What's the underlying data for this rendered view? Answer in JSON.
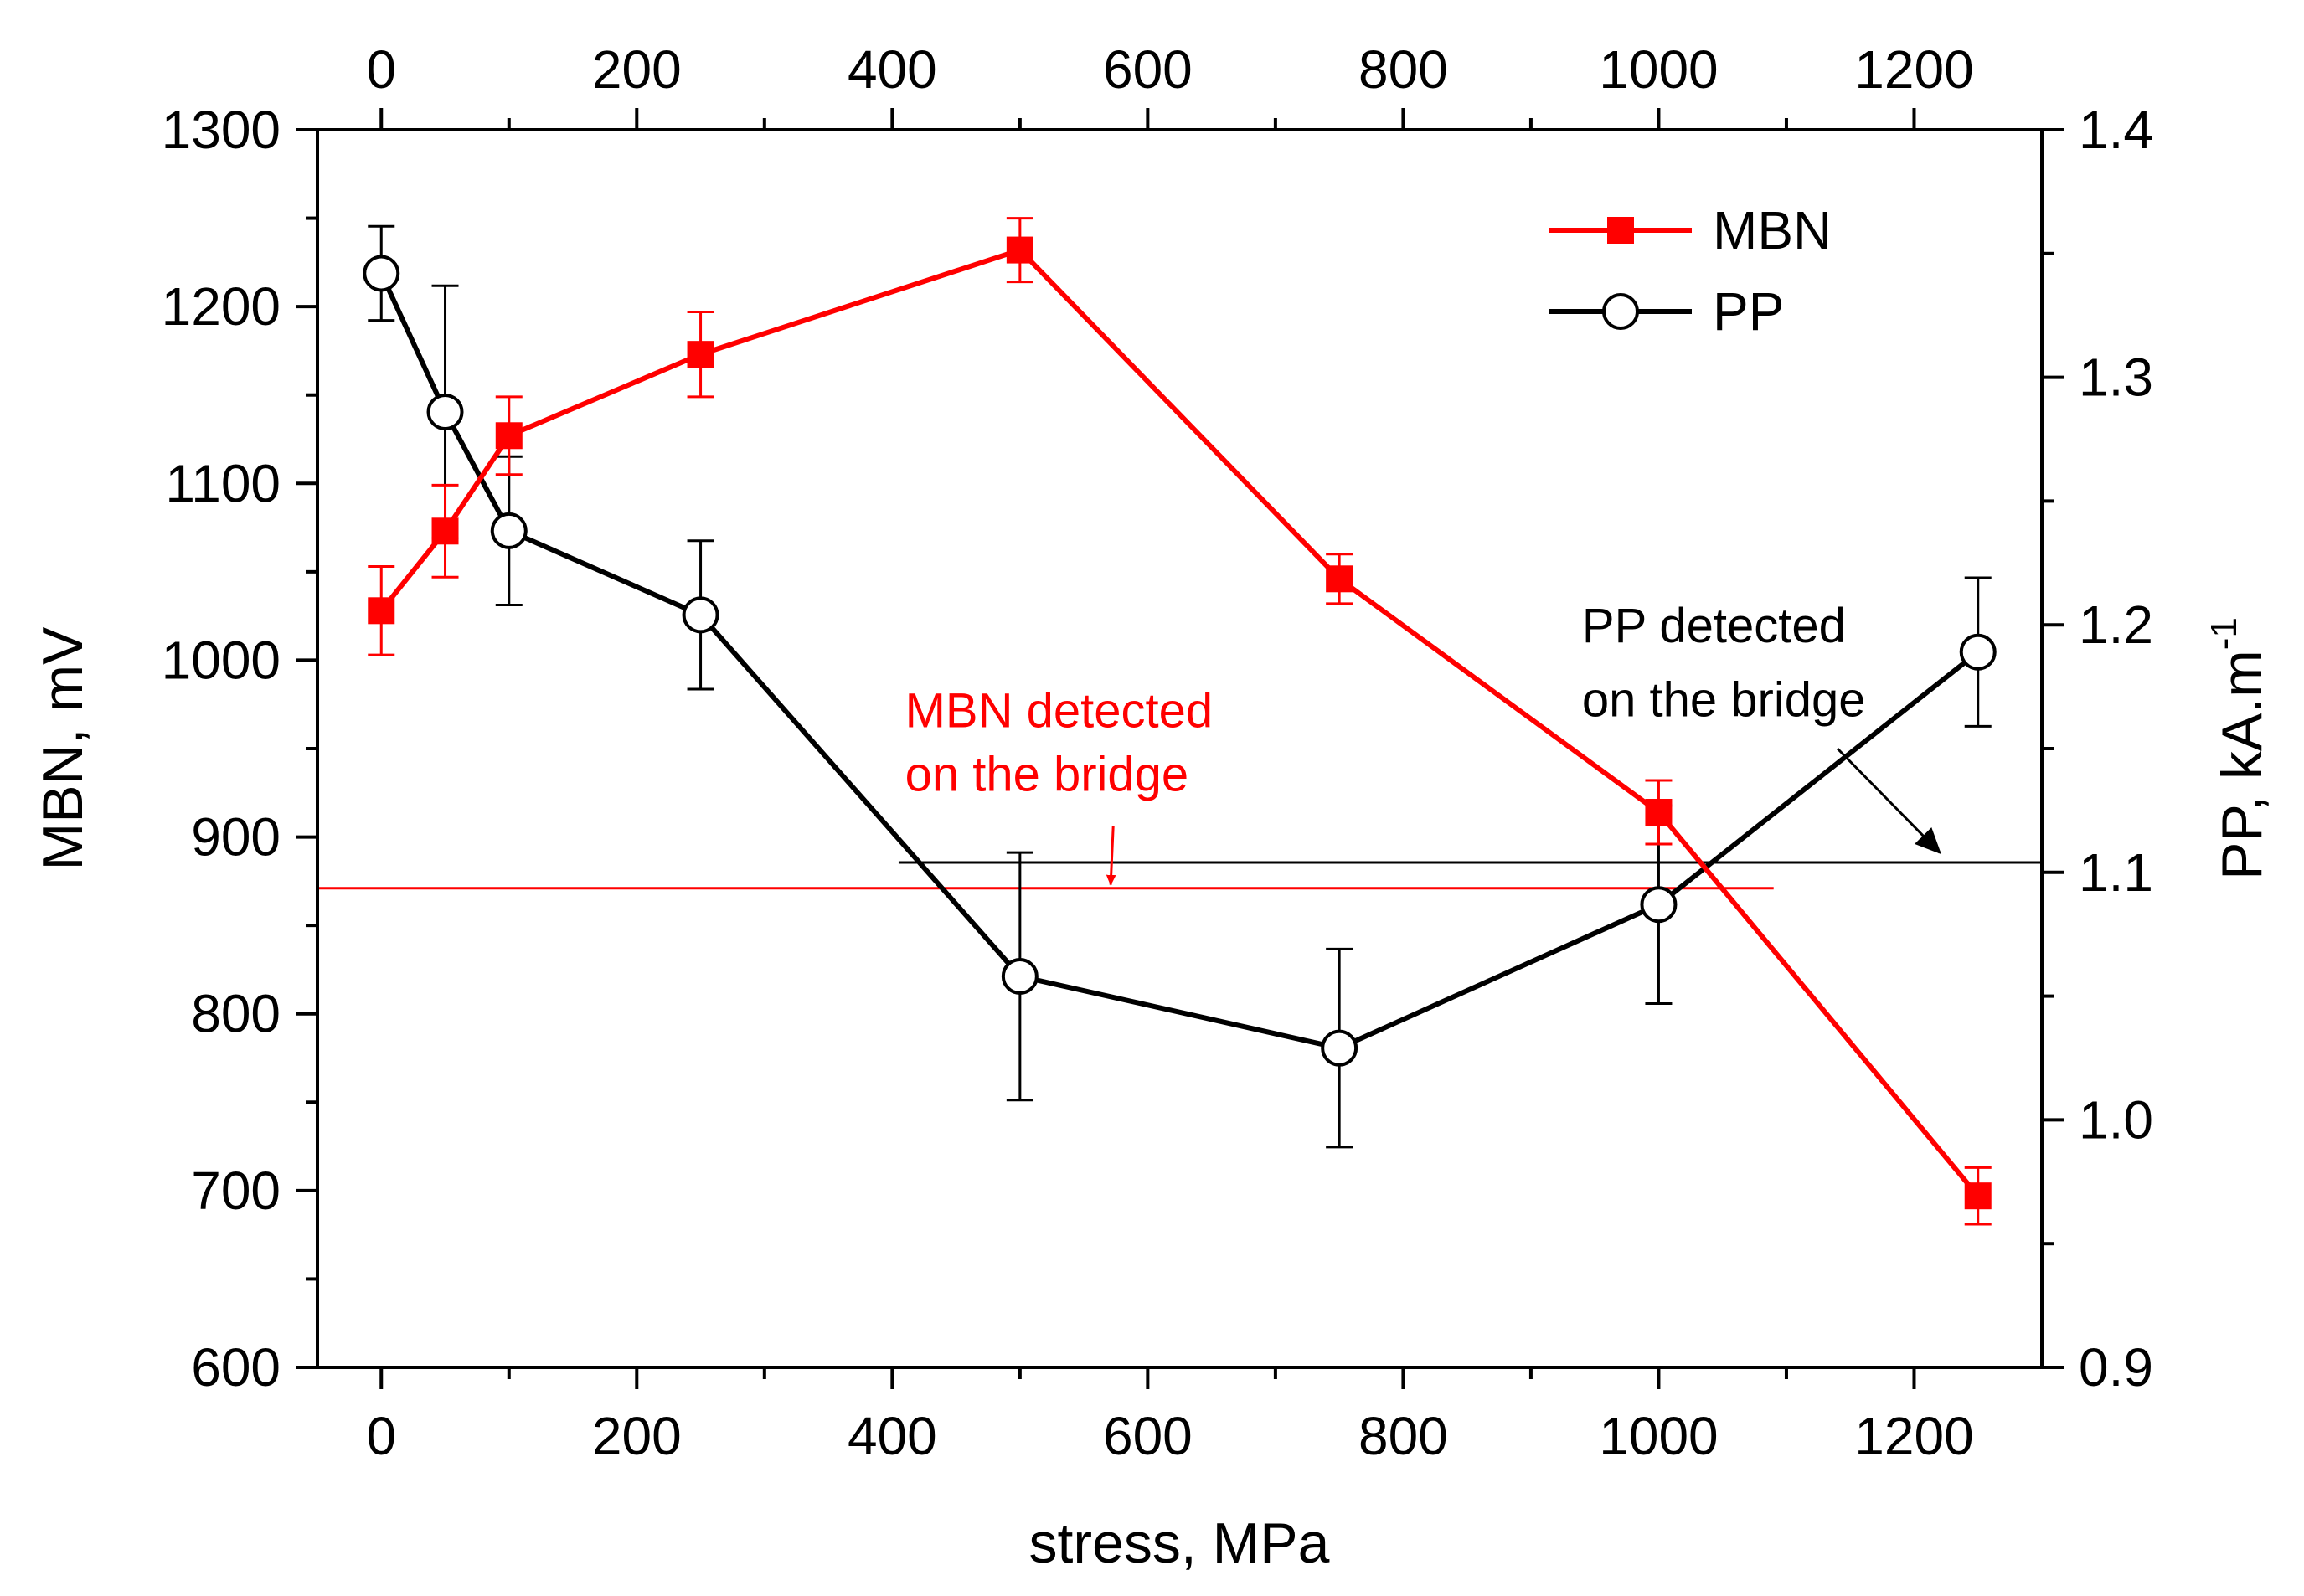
{
  "chart_data": {
    "type": "line",
    "xlabel": "stress, MPa",
    "ylabel_left": "MBN, mV",
    "ylabel_right_main": "PP, kA.m",
    "ylabel_right_sup": "-1",
    "xlim": [
      -50,
      1300
    ],
    "ylim_left": [
      600,
      1300
    ],
    "ylim_right": [
      0.9,
      1.4
    ],
    "x_ticks": [
      0,
      200,
      400,
      600,
      800,
      1000,
      1200
    ],
    "x_ticks_top": [
      0,
      200,
      400,
      600,
      800,
      1000,
      1200
    ],
    "y_left_ticks": [
      600,
      700,
      800,
      900,
      1000,
      1100,
      1200,
      1300
    ],
    "y_right_ticks": [
      "0.9",
      "1.0",
      "1.1",
      "1.2",
      "1.3",
      "1.4"
    ],
    "grid": false,
    "legend_position": "top-right",
    "series": [
      {
        "name": "MBN",
        "axis": "left",
        "color": "#ff0000",
        "marker": "filled-square",
        "x": [
          0,
          50,
          100,
          250,
          500,
          750,
          1000,
          1250
        ],
        "y": [
          1028,
          1073,
          1127,
          1173,
          1232,
          1046,
          914,
          697
        ],
        "err": [
          25,
          26,
          22,
          24,
          18,
          14,
          18,
          16
        ]
      },
      {
        "name": "PP",
        "axis": "right",
        "color": "#000000",
        "marker": "open-circle",
        "x": [
          0,
          50,
          100,
          250,
          500,
          750,
          1000,
          1250
        ],
        "y": [
          1.342,
          1.286,
          1.238,
          1.204,
          1.058,
          1.029,
          1.087,
          1.189
        ],
        "err": [
          0.019,
          0.051,
          0.03,
          0.03,
          0.05,
          0.04,
          0.04,
          0.03
        ]
      }
    ],
    "reference_lines": [
      {
        "name": "MBN bridge",
        "axis": "left",
        "y": 871,
        "x_from": -50,
        "x_to": 1090,
        "color": "#ff0000"
      },
      {
        "name": "PP bridge",
        "axis": "right",
        "y": 1.104,
        "x_from": 405,
        "x_to": 1300,
        "color": "#000000"
      }
    ],
    "annotations": [
      {
        "lines": [
          "MBN detected",
          "on the bridge"
        ],
        "color": "#ff0000",
        "axis": "left",
        "text_x": 410,
        "text_y": [
          962,
          926
        ],
        "arrow_from": [
          573,
          906
        ],
        "arrow_to": [
          571,
          873
        ]
      },
      {
        "lines": [
          "PP detected",
          "on the bridge"
        ],
        "color": "#000000",
        "axis": "right",
        "text_x": 940,
        "text_y": [
          1.193,
          1.163
        ],
        "arrow_from": [
          1140,
          1.15
        ],
        "arrow_to": [
          1220,
          1.108
        ]
      }
    ]
  }
}
